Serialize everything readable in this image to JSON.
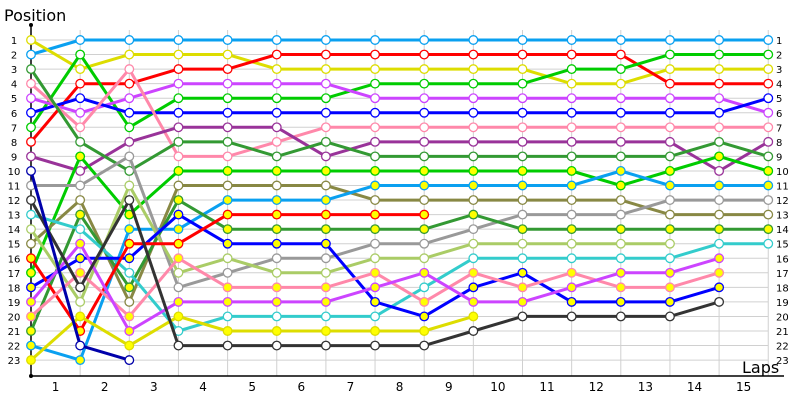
{
  "chart_data": {
    "type": "line",
    "ylabel": "Position",
    "xlabel": "Laps",
    "x_tick_labels": [
      "1",
      "2",
      "3",
      "4",
      "5",
      "6",
      "7",
      "8",
      "9",
      "10",
      "11",
      "12",
      "13",
      "14",
      "15"
    ],
    "y_tick_labels": [
      "1",
      "2",
      "3",
      "4",
      "5",
      "6",
      "7",
      "8",
      "9",
      "10",
      "11",
      "12",
      "13",
      "14",
      "15",
      "16",
      "17",
      "18",
      "19",
      "20",
      "21",
      "22",
      "23"
    ],
    "x": [
      0,
      1,
      2,
      3,
      4,
      5,
      6,
      7,
      8,
      9,
      10,
      11,
      12,
      13,
      14,
      15
    ],
    "ylim": [
      1,
      23
    ],
    "y_inverted": true,
    "grid": true,
    "series": [
      {
        "color": "#0aa0f0",
        "marker_fill": "#ffffff",
        "values": [
          2,
          1,
          1,
          1,
          1,
          1,
          1,
          1,
          1,
          1,
          1,
          1,
          1,
          1,
          1,
          1
        ]
      },
      {
        "color": "#dddd00",
        "marker_fill": "#ffffff",
        "values": [
          1,
          3,
          2,
          2,
          2,
          3,
          3,
          3,
          3,
          3,
          3,
          4,
          4,
          3,
          3,
          3
        ]
      },
      {
        "color": "#ff0000",
        "marker_fill": "#ffffff",
        "values": [
          8,
          4,
          4,
          3,
          3,
          2,
          2,
          2,
          2,
          2,
          2,
          2,
          2,
          4,
          4,
          4
        ]
      },
      {
        "color": "#00cc00",
        "marker_fill": "#ffffff",
        "values": [
          7,
          2,
          7,
          5,
          5,
          5,
          5,
          4,
          4,
          4,
          4,
          3,
          3,
          2,
          2,
          2
        ]
      },
      {
        "color": "#cc44ff",
        "marker_fill": "#ffffff",
        "values": [
          5,
          6,
          5,
          4,
          4,
          4,
          4,
          5,
          5,
          5,
          5,
          5,
          5,
          5,
          5,
          6
        ]
      },
      {
        "color": "#0000ff",
        "marker_fill": "#ffffff",
        "values": [
          6,
          5,
          6,
          6,
          6,
          6,
          6,
          6,
          6,
          6,
          6,
          6,
          6,
          6,
          6,
          5
        ]
      },
      {
        "color": "#ff88aa",
        "marker_fill": "#ffffff",
        "values": [
          4,
          7,
          3,
          9,
          9,
          8,
          7,
          7,
          7,
          7,
          7,
          7,
          7,
          7,
          7,
          7
        ]
      },
      {
        "color": "#993399",
        "marker_fill": "#ffffff",
        "values": [
          9,
          10,
          8,
          7,
          7,
          7,
          9,
          8,
          8,
          8,
          8,
          8,
          8,
          8,
          10,
          8
        ]
      },
      {
        "color": "#339933",
        "marker_fill": "#ffffff",
        "values": [
          3,
          8,
          10,
          8,
          8,
          9,
          8,
          9,
          9,
          9,
          9,
          9,
          9,
          9,
          8,
          9
        ]
      },
      {
        "color": "#00cc00",
        "marker_fill": "#ffff00",
        "values": [
          17,
          9,
          13,
          10,
          10,
          10,
          10,
          10,
          10,
          10,
          10,
          10,
          11,
          10,
          9,
          10
        ]
      },
      {
        "color": "#888844",
        "marker_fill": "#ffffff",
        "values": [
          15,
          12,
          19,
          11,
          11,
          11,
          11,
          12,
          12,
          12,
          12,
          12,
          12,
          13,
          13,
          13
        ]
      },
      {
        "color": "#0aa0f0",
        "marker_fill": "#ffff00",
        "values": [
          22,
          23,
          14,
          14,
          12,
          12,
          12,
          11,
          11,
          11,
          11,
          11,
          10,
          11,
          11,
          11
        ]
      },
      {
        "color": "#999999",
        "marker_fill": "#ffffff",
        "values": [
          11,
          11,
          9,
          18,
          17,
          16,
          16,
          15,
          15,
          14,
          13,
          13,
          13,
          12,
          12,
          12
        ]
      },
      {
        "color": "#339933",
        "marker_fill": "#ffff00",
        "values": [
          21,
          13,
          18,
          12,
          14,
          14,
          14,
          14,
          14,
          13,
          14,
          14,
          14,
          14,
          14,
          14
        ]
      },
      {
        "color": "#aacc66",
        "marker_fill": "#ffffff",
        "values": [
          14,
          19,
          11,
          17,
          16,
          17,
          17,
          16,
          16,
          15,
          15,
          15,
          15,
          15,
          null,
          null
        ]
      },
      {
        "color": "#33cccc",
        "marker_fill": "#ffffff",
        "values": [
          13,
          14,
          17,
          21,
          20,
          20,
          20,
          20,
          18,
          16,
          16,
          16,
          16,
          16,
          15,
          15
        ]
      },
      {
        "color": "#0000ff",
        "marker_fill": "#ffff00",
        "values": [
          18,
          16,
          16,
          13,
          15,
          15,
          15,
          19,
          20,
          18,
          17,
          19,
          19,
          19,
          18,
          null
        ]
      },
      {
        "color": "#ff0000",
        "marker_fill": "#ffff00",
        "values": [
          16,
          21,
          15,
          15,
          13,
          13,
          13,
          13,
          13,
          null,
          null,
          null,
          null,
          null,
          null,
          null
        ]
      },
      {
        "color": "#ff88aa",
        "marker_fill": "#ffff00",
        "values": [
          20,
          17,
          20,
          16,
          18,
          18,
          18,
          17,
          19,
          17,
          18,
          17,
          18,
          18,
          17,
          null
        ]
      },
      {
        "color": "#cc44ff",
        "marker_fill": "#ffff00",
        "values": [
          19,
          15,
          21,
          19,
          19,
          19,
          19,
          18,
          17,
          19,
          19,
          18,
          17,
          17,
          16,
          null
        ]
      },
      {
        "color": "#dddd00",
        "marker_fill": "#ffff00",
        "values": [
          23,
          20,
          22,
          20,
          21,
          21,
          21,
          21,
          21,
          20,
          null,
          null,
          null,
          null,
          null,
          null
        ]
      },
      {
        "color": "#333333",
        "marker_fill": "#ffffff",
        "values": [
          12,
          18,
          12,
          22,
          22,
          22,
          22,
          22,
          22,
          21,
          20,
          20,
          20,
          20,
          19,
          null
        ]
      },
      {
        "color": "#0000aa",
        "marker_fill": "#ffffff",
        "values": [
          10,
          22,
          23,
          null,
          null,
          null,
          null,
          null,
          null,
          null,
          null,
          null,
          null,
          null,
          null,
          null
        ]
      }
    ]
  }
}
